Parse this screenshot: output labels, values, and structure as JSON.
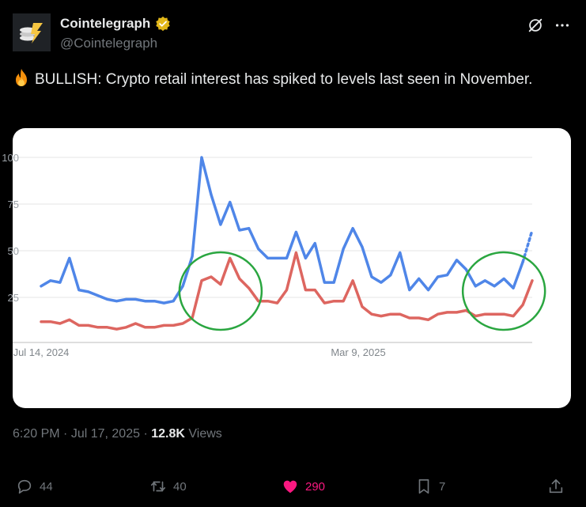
{
  "author": {
    "name": "Cointelegraph",
    "handle": "@Cointelegraph"
  },
  "tweet": {
    "text": "BULLISH: Crypto retail interest has spiked to levels last seen in November.",
    "emoji_icon": "fire-icon"
  },
  "meta": {
    "time": "6:20 PM",
    "date": "Jul 17, 2025",
    "separator": " · ",
    "views_count": "12.8K",
    "views_label": "Views"
  },
  "actions": {
    "replies": "44",
    "reposts": "40",
    "likes": "290",
    "bookmarks": "7"
  },
  "colors": {
    "blue_series": "#4f86e8",
    "red_series": "#dd6660",
    "highlight_circle": "#2aa640",
    "like_pink": "#f91880"
  },
  "chart_data": {
    "type": "line",
    "x_tick_labels": [
      "Jul 14, 2024",
      "Mar 9, 2025"
    ],
    "y_tick_labels": [
      "100",
      "75",
      "50",
      "25"
    ],
    "ylim": [
      0,
      100
    ],
    "grid": true,
    "series": [
      {
        "color": "#4f86e8",
        "values": [
          31,
          34,
          33,
          46,
          29,
          28,
          26,
          24,
          23,
          24,
          24,
          23,
          23,
          22,
          23,
          31,
          47,
          100,
          80,
          64,
          76,
          61,
          62,
          51,
          46,
          46,
          46,
          60,
          46,
          54,
          33,
          33,
          51,
          62,
          52,
          36,
          33,
          37,
          49,
          29,
          35,
          29,
          36,
          37,
          45,
          40,
          31,
          34,
          31,
          35,
          30,
          44
        ],
        "forecast_tail": [
          44,
          61
        ]
      },
      {
        "color": "#dd6660",
        "values": [
          12,
          12,
          11,
          13,
          10,
          10,
          9,
          9,
          8,
          9,
          11,
          9,
          9,
          10,
          10,
          11,
          14,
          34,
          36,
          32,
          46,
          35,
          30,
          23,
          23,
          22,
          29,
          49,
          29,
          29,
          22,
          23,
          23,
          34,
          20,
          16,
          15,
          16,
          16,
          14,
          14,
          13,
          16,
          17,
          17,
          18,
          15,
          16,
          16,
          16,
          15,
          21,
          34
        ]
      }
    ],
    "annotations": [
      {
        "shape": "circle",
        "color": "#2aa640",
        "around_index": 19
      },
      {
        "shape": "circle",
        "color": "#2aa640",
        "around_index": 49
      }
    ]
  }
}
